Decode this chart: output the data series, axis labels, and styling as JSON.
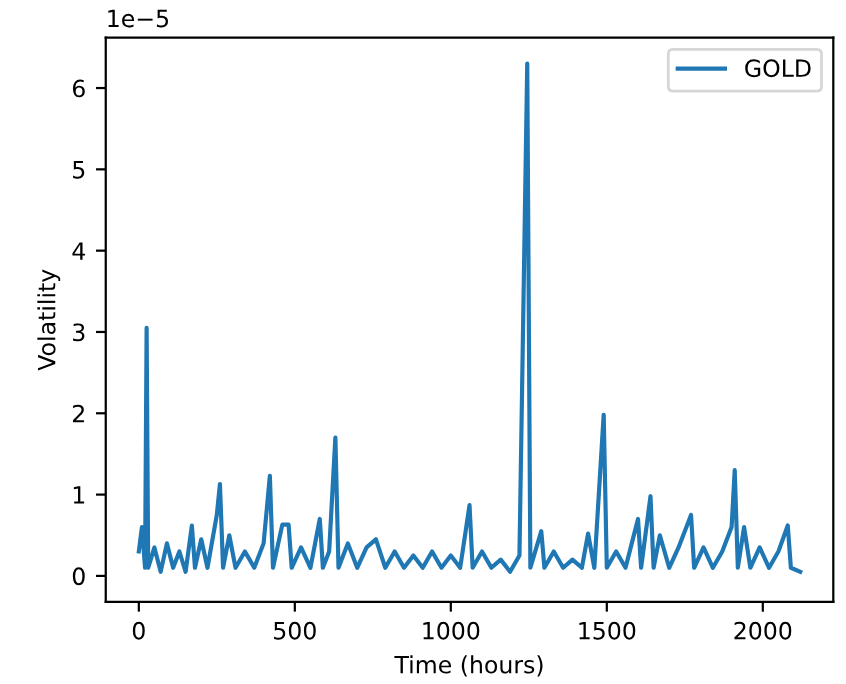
{
  "chart_data": {
    "type": "line",
    "xlabel": "Time (hours)",
    "ylabel": "Volatility",
    "annotations": [
      "1e−5"
    ],
    "xlim": [
      -106,
      2226
    ],
    "xticks": [
      0,
      500,
      1000,
      1500,
      2000
    ],
    "ylim": [
      -0.32,
      6.62
    ],
    "yticks": [
      0,
      1,
      2,
      3,
      4,
      5,
      6
    ],
    "legend": "top right",
    "grid": false,
    "x": [
      0,
      10,
      20,
      25,
      30,
      50,
      70,
      90,
      110,
      130,
      150,
      170,
      180,
      200,
      220,
      250,
      260,
      270,
      290,
      310,
      340,
      370,
      400,
      420,
      430,
      460,
      480,
      490,
      520,
      550,
      580,
      590,
      610,
      630,
      640,
      670,
      700,
      730,
      760,
      790,
      820,
      850,
      880,
      910,
      940,
      970,
      1000,
      1030,
      1060,
      1070,
      1100,
      1130,
      1160,
      1190,
      1220,
      1245,
      1255,
      1290,
      1300,
      1330,
      1360,
      1390,
      1420,
      1440,
      1460,
      1490,
      1500,
      1530,
      1560,
      1580,
      1600,
      1610,
      1640,
      1650,
      1670,
      1700,
      1730,
      1770,
      1780,
      1810,
      1840,
      1870,
      1900,
      1910,
      1920,
      1940,
      1960,
      1990,
      2020,
      2050,
      2080,
      2090,
      2120
    ],
    "series": [
      {
        "name": "GOLD",
        "color": "#1f77b4",
        "values": [
          0.3,
          0.6,
          0.1,
          3.05,
          0.1,
          0.35,
          0.05,
          0.4,
          0.1,
          0.3,
          0.05,
          0.62,
          0.1,
          0.45,
          0.1,
          0.75,
          1.13,
          0.1,
          0.5,
          0.1,
          0.3,
          0.1,
          0.4,
          1.23,
          0.1,
          0.63,
          0.63,
          0.1,
          0.35,
          0.1,
          0.7,
          0.1,
          0.3,
          1.7,
          0.1,
          0.4,
          0.1,
          0.35,
          0.45,
          0.1,
          0.3,
          0.1,
          0.25,
          0.1,
          0.3,
          0.1,
          0.25,
          0.1,
          0.87,
          0.1,
          0.3,
          0.1,
          0.2,
          0.05,
          0.25,
          6.3,
          0.1,
          0.55,
          0.1,
          0.3,
          0.1,
          0.2,
          0.1,
          0.52,
          0.1,
          1.98,
          0.1,
          0.3,
          0.1,
          0.4,
          0.7,
          0.1,
          0.98,
          0.1,
          0.5,
          0.1,
          0.35,
          0.75,
          0.1,
          0.35,
          0.1,
          0.3,
          0.6,
          1.3,
          0.1,
          0.6,
          0.1,
          0.35,
          0.1,
          0.3,
          0.62,
          0.1,
          0.05
        ]
      }
    ]
  }
}
